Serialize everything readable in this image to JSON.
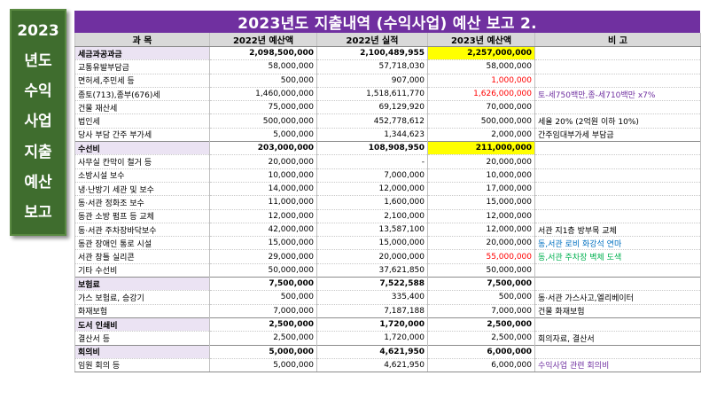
{
  "side_label": [
    "2023",
    "년도",
    "수익",
    "사업",
    "지출",
    "예산",
    "보고"
  ],
  "title": "2023년도 지출내역 (수익사업) 예산 보고 2.",
  "headers": [
    "과    목",
    "2022년 예산액",
    "2022년 실적",
    "2023년 예산액",
    "비          고"
  ],
  "colors": {
    "title_bg": "#7030a0",
    "side_bg": "#3f6d2e",
    "highlight": "#ffff00",
    "red_text": "#ff0000",
    "purple_note": "#7030a0",
    "blue_note": "#0070c0",
    "green_note": "#00b050"
  },
  "rows": [
    {
      "name": "세금과공과금",
      "b2022": "2,098,500,000",
      "a2022": "2,100,489,955",
      "b2023": "2,257,000,000",
      "note": "",
      "cat": true,
      "hl": true,
      "red": false,
      "indent": 0,
      "note_color": ""
    },
    {
      "name": "교통유발부담금",
      "b2022": "58,000,000",
      "a2022": "57,718,030",
      "b2023": "58,000,000",
      "note": "",
      "cat": false,
      "hl": false,
      "red": false,
      "indent": 1,
      "note_color": ""
    },
    {
      "name": "면허세,주민세 등",
      "b2022": "500,000",
      "a2022": "907,000",
      "b2023": "1,000,000",
      "note": "",
      "cat": false,
      "hl": false,
      "red": true,
      "indent": 1,
      "note_color": ""
    },
    {
      "name": "종토(713),종부(676)세",
      "b2022": "1,460,000,000",
      "a2022": "1,518,611,770",
      "b2023": "1,626,000,000",
      "note": "토-세750백만,종-세710백만 x7%",
      "cat": false,
      "hl": false,
      "red": true,
      "indent": 1,
      "note_color": "#7030a0"
    },
    {
      "name": "건물 재산세",
      "b2022": "75,000,000",
      "a2022": "69,129,920",
      "b2023": "70,000,000",
      "note": "",
      "cat": false,
      "hl": false,
      "red": false,
      "indent": 1,
      "note_color": ""
    },
    {
      "name": "법인세",
      "b2022": "500,000,000",
      "a2022": "452,778,612",
      "b2023": "500,000,000",
      "note": "세율 20% (2억원 이하 10%)",
      "cat": false,
      "hl": false,
      "red": false,
      "indent": 1,
      "note_color": "#000000"
    },
    {
      "name": "당사 부담 간주 부가세",
      "b2022": "5,000,000",
      "a2022": "1,344,623",
      "b2023": "2,000,000",
      "note": "간주임대부가세 부담금",
      "cat": false,
      "hl": false,
      "red": false,
      "indent": 1,
      "note_color": "#000000"
    },
    {
      "name": "수선비",
      "b2022": "203,000,000",
      "a2022": "108,908,950",
      "b2023": "211,000,000",
      "note": "",
      "cat": true,
      "hl": true,
      "red": false,
      "indent": 0,
      "note_color": ""
    },
    {
      "name": "사무실 칸막이 철거 등",
      "b2022": "20,000,000",
      "a2022": "-",
      "b2023": "20,000,000",
      "note": "",
      "cat": false,
      "hl": false,
      "red": false,
      "indent": 1,
      "note_color": ""
    },
    {
      "name": "소방시설 보수",
      "b2022": "10,000,000",
      "a2022": "7,000,000",
      "b2023": "10,000,000",
      "note": "",
      "cat": false,
      "hl": false,
      "red": false,
      "indent": 1,
      "note_color": ""
    },
    {
      "name": "냉·난방기 세관 및 보수",
      "b2022": "14,000,000",
      "a2022": "12,000,000",
      "b2023": "17,000,000",
      "note": "",
      "cat": false,
      "hl": false,
      "red": false,
      "indent": 2,
      "note_color": ""
    },
    {
      "name": "동·서관 정화조 보수",
      "b2022": "11,000,000",
      "a2022": "1,600,000",
      "b2023": "15,000,000",
      "note": "",
      "cat": false,
      "hl": false,
      "red": false,
      "indent": 2,
      "note_color": ""
    },
    {
      "name": "동관 소방 펌프 등 교체",
      "b2022": "12,000,000",
      "a2022": "2,100,000",
      "b2023": "12,000,000",
      "note": "",
      "cat": false,
      "hl": false,
      "red": false,
      "indent": 2,
      "note_color": ""
    },
    {
      "name": "동·서관 주차장바닥보수",
      "b2022": "42,000,000",
      "a2022": "13,587,100",
      "b2023": "12,000,000",
      "note": "서관 지1층 방부목 교체",
      "cat": false,
      "hl": false,
      "red": false,
      "indent": 2,
      "note_color": "#000000"
    },
    {
      "name": "동관 장애인 통로 시설",
      "b2022": "15,000,000",
      "a2022": "15,000,000",
      "b2023": "20,000,000",
      "note": "동,서관 로비 화강석 연마",
      "cat": false,
      "hl": false,
      "red": false,
      "indent": 2,
      "note_color": "#0070c0"
    },
    {
      "name": "서관 창틀 실리콘",
      "b2022": "29,000,000",
      "a2022": "20,000,000",
      "b2023": "55,000,000",
      "note": "동,서관 주차장 벽체 도색",
      "cat": false,
      "hl": false,
      "red": true,
      "indent": 2,
      "note_color": "#00b050"
    },
    {
      "name": "기타 수선비",
      "b2022": "50,000,000",
      "a2022": "37,621,850",
      "b2023": "50,000,000",
      "note": "",
      "cat": false,
      "hl": false,
      "red": false,
      "indent": 0,
      "note_color": ""
    },
    {
      "name": "보험료",
      "b2022": "7,500,000",
      "a2022": "7,522,588",
      "b2023": "7,500,000",
      "note": "",
      "cat": true,
      "hl": false,
      "red": false,
      "indent": 0,
      "note_color": ""
    },
    {
      "name": "가스 보험료, 승강기",
      "b2022": "500,000",
      "a2022": "335,400",
      "b2023": "500,000",
      "note": "동·서관 가스사고,엘리베이터",
      "cat": false,
      "hl": false,
      "red": false,
      "indent": 1,
      "note_color": "#000000"
    },
    {
      "name": "화재보험",
      "b2022": "7,000,000",
      "a2022": "7,187,188",
      "b2023": "7,000,000",
      "note": "건물 화재보험",
      "cat": false,
      "hl": false,
      "red": false,
      "indent": 1,
      "note_color": "#000000"
    },
    {
      "name": "도서 인쇄비",
      "b2022": "2,500,000",
      "a2022": "1,720,000",
      "b2023": "2,500,000",
      "note": "",
      "cat": true,
      "hl": false,
      "red": false,
      "indent": 0,
      "note_color": ""
    },
    {
      "name": "결산서 등",
      "b2022": "2,500,000",
      "a2022": "1,720,000",
      "b2023": "2,500,000",
      "note": "회의자료, 결산서",
      "cat": false,
      "hl": false,
      "red": false,
      "indent": 1,
      "note_color": "#000000"
    },
    {
      "name": "회의비",
      "b2022": "5,000,000",
      "a2022": "4,621,950",
      "b2023": "6,000,000",
      "note": "",
      "cat": true,
      "hl": false,
      "red": false,
      "indent": 0,
      "note_color": ""
    },
    {
      "name": "임원 회의 등",
      "b2022": "5,000,000",
      "a2022": "4,621,950",
      "b2023": "6,000,000",
      "note": "수익사업 관련 회의비",
      "cat": false,
      "hl": false,
      "red": false,
      "indent": 1,
      "note_color": "#7030a0"
    }
  ]
}
